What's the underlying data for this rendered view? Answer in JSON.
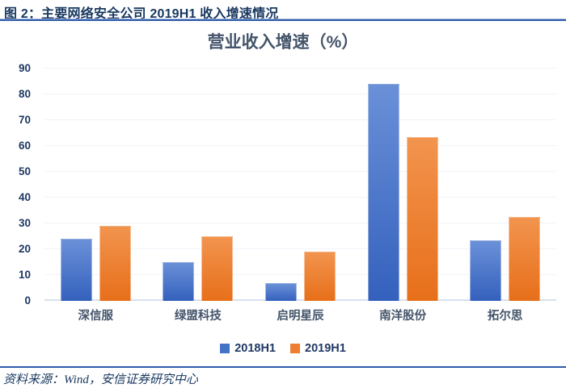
{
  "header": {
    "title": "图 2：主要网络安全公司 2019H1 收入增速情况"
  },
  "chart_data": {
    "type": "bar",
    "title": "营业收入增速（%）",
    "categories": [
      "深信服",
      "绿盟科技",
      "启明星辰",
      "南洋股份",
      "拓尔思"
    ],
    "series": [
      {
        "name": "2018H1",
        "color": "#4472C4",
        "gradient": [
          "#6A90D8",
          "#3461BD"
        ],
        "values": [
          24,
          15,
          7,
          84,
          23.5
        ]
      },
      {
        "name": "2019H1",
        "color": "#ED7D31",
        "gradient": [
          "#F2944E",
          "#E76F1A"
        ],
        "values": [
          29,
          25,
          19,
          63.5,
          32.5
        ]
      }
    ],
    "xlabel": "",
    "ylabel": "",
    "ylim": [
      0,
      90
    ],
    "ytick_step": 10,
    "grid": true,
    "legend_position": "bottom"
  },
  "footer": {
    "source": "资料来源：Wind，安信证券研究中心"
  },
  "colors": {
    "header_text": "#17375E",
    "rule_blue": "#2E5AA7",
    "chart_title_text": "#44546A",
    "axis_label_text": "#1F3864",
    "category_label_text": "#44546A",
    "gridline": "#F0F3F9",
    "baseline": "#D9E1EE",
    "series_blue": "#4472C4",
    "series_orange": "#ED7D31"
  }
}
